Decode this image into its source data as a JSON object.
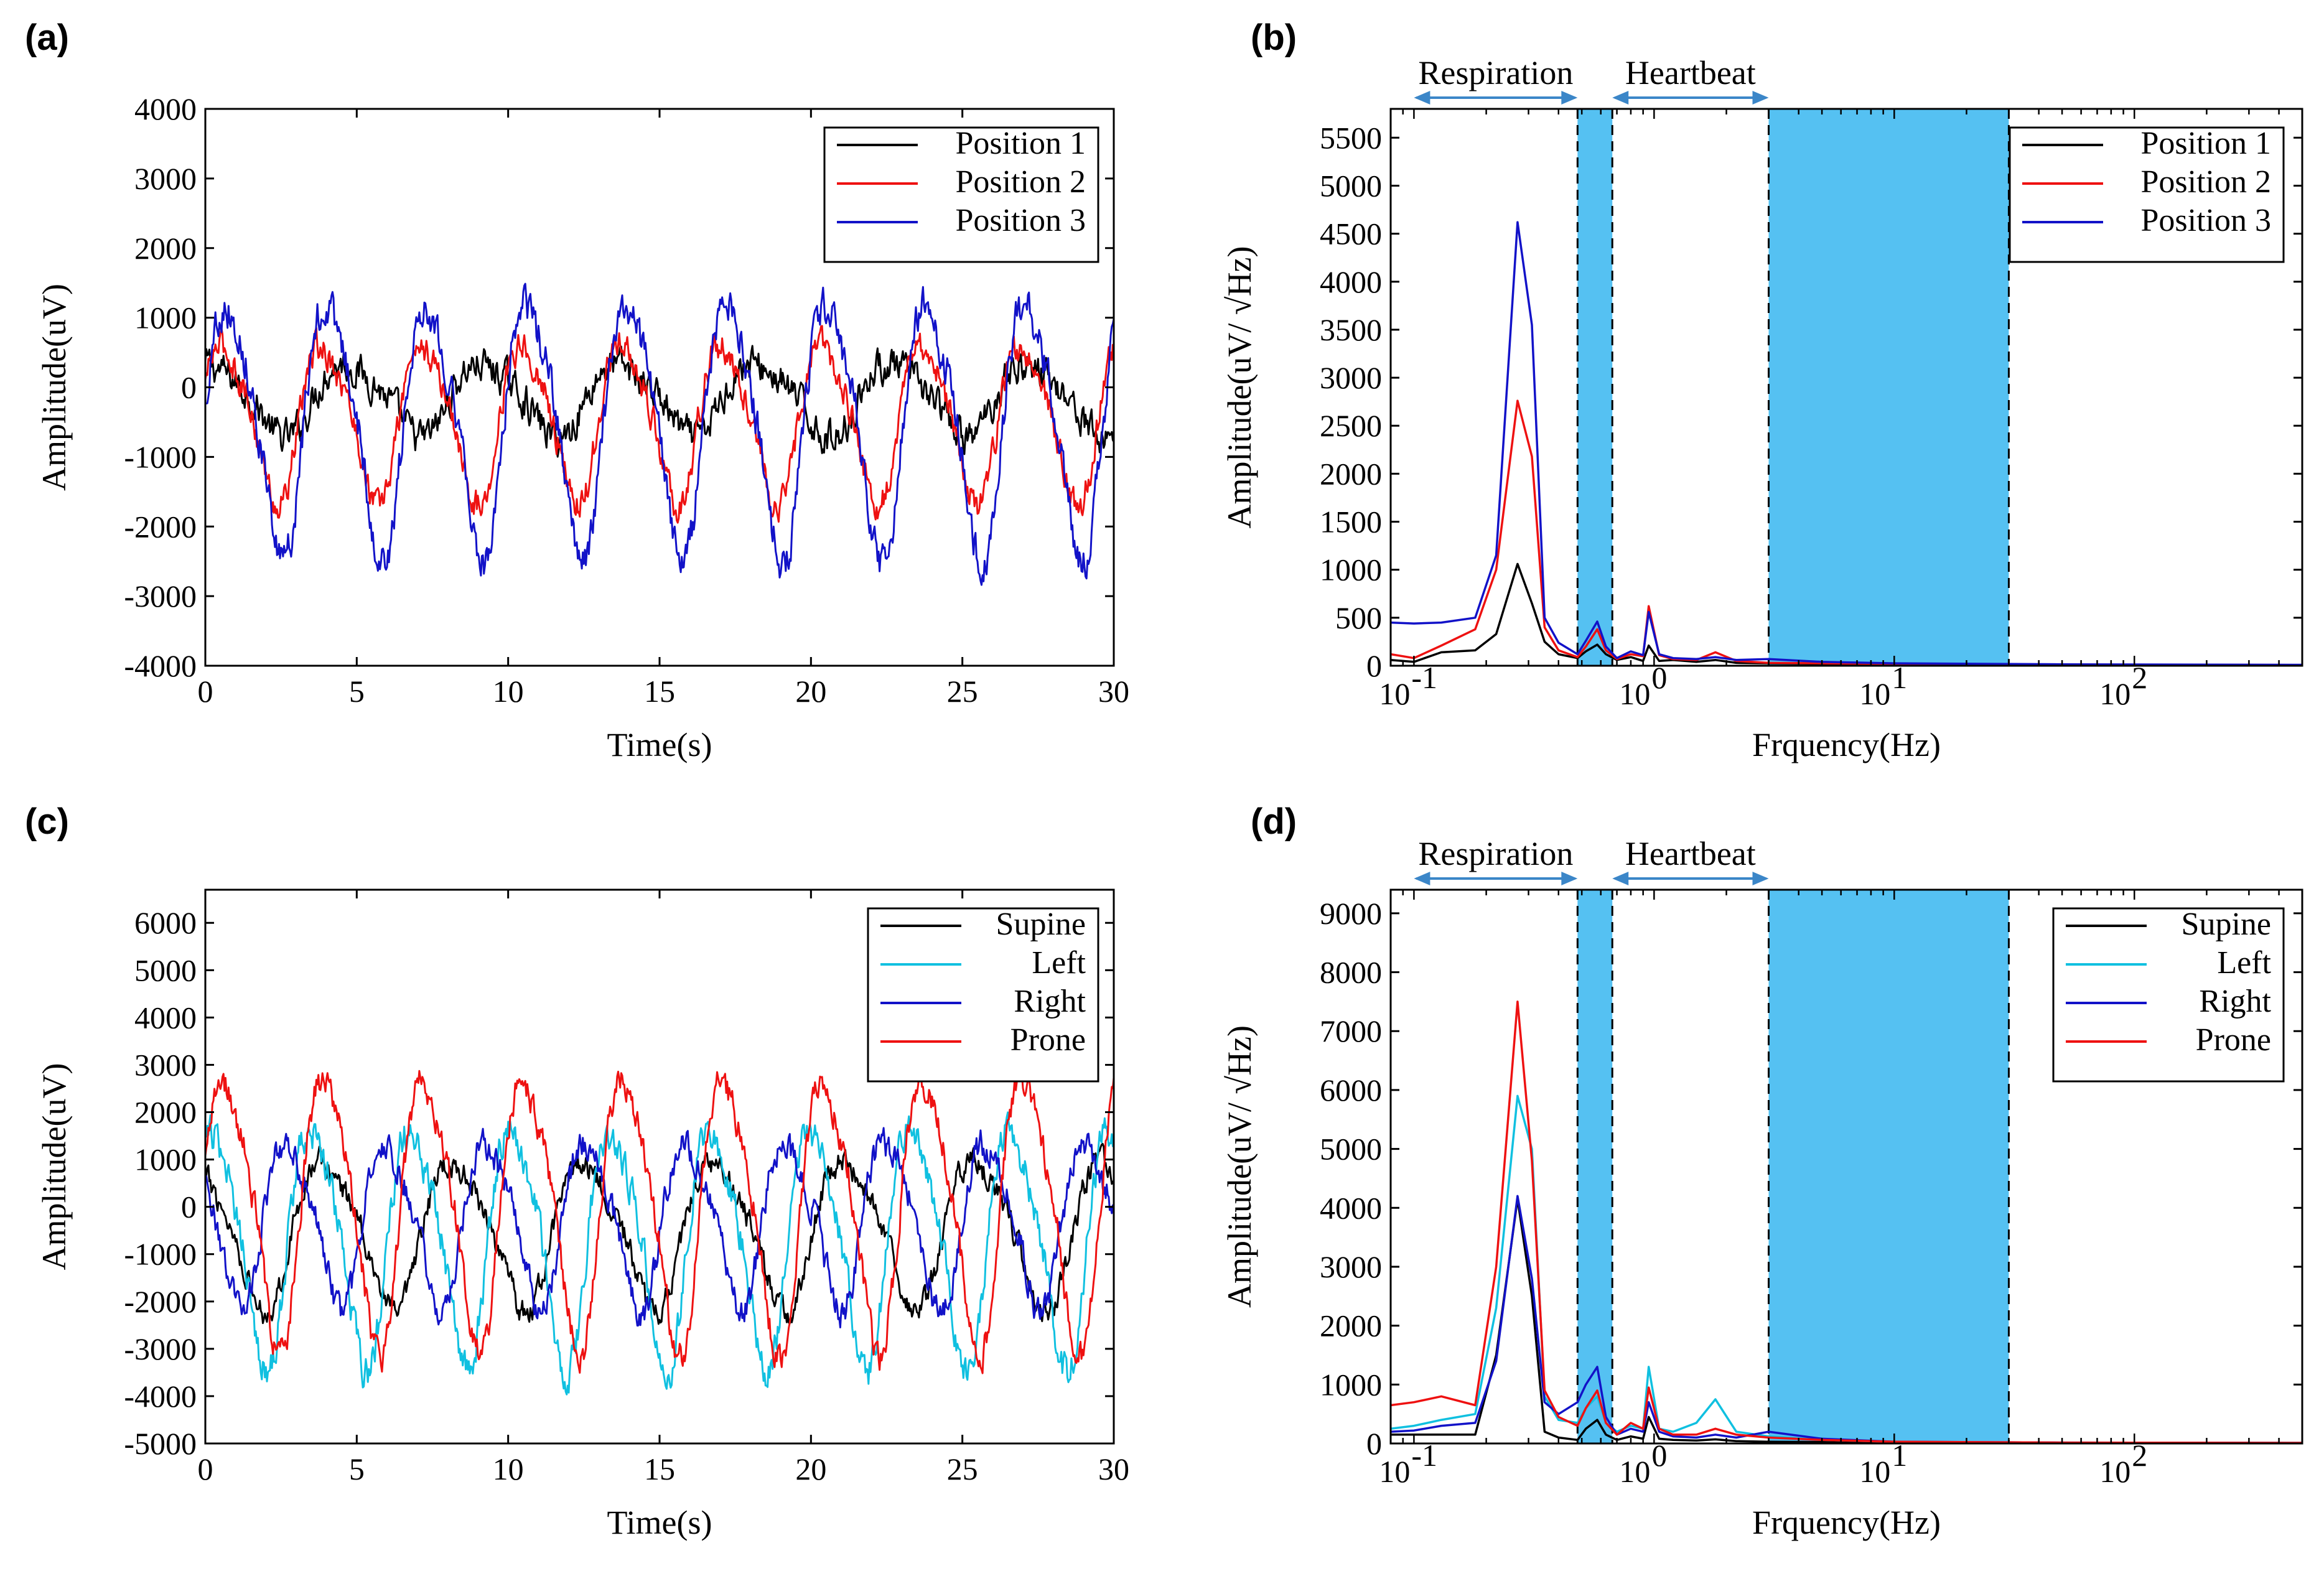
{
  "colors": {
    "black": "#000000",
    "red": "#ee1111",
    "blue": "#1212c8",
    "cyan": "#10c0e0",
    "band_fill": "#55c1f2",
    "arrow": "#3b86c8"
  },
  "chart_data": [
    {
      "panel": "(a)",
      "type": "line",
      "xlabel": "Time(s)",
      "ylabel": "Amplitude(uV)",
      "xlim": [
        0,
        30
      ],
      "ylim": [
        -4000,
        4000
      ],
      "xticks": [
        0,
        5,
        10,
        15,
        20,
        25,
        30
      ],
      "yticks": [
        -4000,
        -3000,
        -2000,
        -1000,
        0,
        1000,
        2000,
        3000,
        4000
      ],
      "legend_position": "top-right",
      "series": [
        {
          "name": "Position 1",
          "color": "#000000",
          "amplitude": 600,
          "period": 4.5,
          "phase": 1.2,
          "offset": -150,
          "noise": 200
        },
        {
          "name": "Position 2",
          "color": "#ee1111",
          "amplitude": 1300,
          "period": 3.3,
          "phase": 0.3,
          "offset": -450,
          "noise": 180
        },
        {
          "name": "Position 3",
          "color": "#1212c8",
          "amplitude": 2100,
          "period": 3.3,
          "phase": 0.0,
          "offset": -500,
          "noise": 220
        }
      ]
    },
    {
      "panel": "(b)",
      "type": "line",
      "xscale": "log",
      "xlabel": "Frquency(Hz)",
      "ylabel": "Amplitude(uV/ √Hz)",
      "xlim": [
        0.08,
        500
      ],
      "ylim": [
        0,
        5800
      ],
      "xticks": [
        0.1,
        1,
        10,
        100
      ],
      "xtick_labels": [
        {
          "base": "10",
          "exp": "-1"
        },
        {
          "base": "10",
          "exp": "0"
        },
        {
          "base": "10",
          "exp": "1"
        },
        {
          "base": "10",
          "exp": "2"
        }
      ],
      "yticks": [
        0,
        500,
        1000,
        1500,
        2000,
        2500,
        3000,
        3500,
        4000,
        4500,
        5000,
        5500
      ],
      "legend_position": "top-right",
      "shaded_bands_hz": [
        [
          0.48,
          0.67
        ],
        [
          3.0,
          30
        ]
      ],
      "annotations": [
        {
          "text": "Respiration",
          "from_hz": 0.1,
          "to_hz": 0.48
        },
        {
          "text": "Heartbeat",
          "from_hz": 0.67,
          "to_hz": 3.0
        }
      ],
      "series": [
        {
          "name": "Position 1",
          "color": "#000000",
          "x": [
            0.08,
            0.1,
            0.13,
            0.18,
            0.22,
            0.27,
            0.31,
            0.35,
            0.4,
            0.48,
            0.52,
            0.58,
            0.63,
            0.7,
            0.8,
            0.9,
            0.95,
            1.05,
            1.2,
            1.5,
            1.8,
            2.2,
            3,
            5,
            10,
            50,
            500
          ],
          "y": [
            60,
            40,
            140,
            160,
            330,
            1060,
            650,
            250,
            120,
            80,
            150,
            220,
            120,
            60,
            90,
            50,
            210,
            50,
            60,
            40,
            60,
            30,
            25,
            20,
            15,
            10,
            8
          ]
        },
        {
          "name": "Position 2",
          "color": "#ee1111",
          "x": [
            0.08,
            0.1,
            0.13,
            0.18,
            0.22,
            0.27,
            0.31,
            0.35,
            0.4,
            0.48,
            0.52,
            0.58,
            0.63,
            0.7,
            0.8,
            0.9,
            0.95,
            1.05,
            1.2,
            1.5,
            1.8,
            2.2,
            3,
            5,
            10,
            50,
            500
          ],
          "y": [
            120,
            80,
            210,
            380,
            1000,
            2760,
            2180,
            400,
            160,
            90,
            200,
            380,
            160,
            70,
            120,
            100,
            620,
            110,
            70,
            60,
            140,
            50,
            30,
            25,
            20,
            12,
            8
          ]
        },
        {
          "name": "Position 3",
          "color": "#1212c8",
          "x": [
            0.08,
            0.1,
            0.13,
            0.18,
            0.22,
            0.27,
            0.31,
            0.35,
            0.4,
            0.48,
            0.52,
            0.58,
            0.63,
            0.7,
            0.8,
            0.9,
            0.95,
            1.05,
            1.2,
            1.5,
            1.8,
            2.2,
            3,
            5,
            10,
            50,
            500
          ],
          "y": [
            450,
            440,
            450,
            500,
            1150,
            4620,
            3550,
            500,
            240,
            120,
            260,
            460,
            200,
            80,
            150,
            110,
            560,
            120,
            80,
            70,
            90,
            60,
            70,
            40,
            25,
            15,
            10
          ]
        }
      ]
    },
    {
      "panel": "(c)",
      "type": "line",
      "xlabel": "Time(s)",
      "ylabel": "Amplitude(uV)",
      "xlim": [
        0,
        30
      ],
      "ylim": [
        -5000,
        6700
      ],
      "xticks": [
        0,
        5,
        10,
        15,
        20,
        25,
        30
      ],
      "yticks": [
        -5000,
        -4000,
        -3000,
        -2000,
        -1000,
        0,
        1000,
        2000,
        3000,
        4000,
        5000,
        6000
      ],
      "legend_position": "top-right",
      "series": [
        {
          "name": "Supine",
          "color": "#000000",
          "amplitude": 1800,
          "period": 4.3,
          "phase": 2.0,
          "offset": -500,
          "noise": 220
        },
        {
          "name": "Left",
          "color": "#10c0e0",
          "amplitude": 2900,
          "period": 3.3,
          "phase": 1.0,
          "offset": -700,
          "noise": 300
        },
        {
          "name": "Right",
          "color": "#1212c8",
          "amplitude": 2000,
          "period": 3.3,
          "phase": 2.6,
          "offset": -300,
          "noise": 260
        },
        {
          "name": "Prone",
          "color": "#ee1111",
          "amplitude": 3300,
          "period": 3.3,
          "phase": 0.2,
          "offset": 0,
          "noise": 260
        }
      ]
    },
    {
      "panel": "(d)",
      "type": "line",
      "xscale": "log",
      "xlabel": "Frquency(Hz)",
      "ylabel": "Amplitude(uV/ √Hz)",
      "xlim": [
        0.08,
        500
      ],
      "ylim": [
        0,
        9400
      ],
      "xticks": [
        0.1,
        1,
        10,
        100
      ],
      "xtick_labels": [
        {
          "base": "10",
          "exp": "-1"
        },
        {
          "base": "10",
          "exp": "0"
        },
        {
          "base": "10",
          "exp": "1"
        },
        {
          "base": "10",
          "exp": "2"
        }
      ],
      "yticks": [
        0,
        1000,
        2000,
        3000,
        4000,
        5000,
        6000,
        7000,
        8000,
        9000
      ],
      "legend_position": "top-right",
      "shaded_bands_hz": [
        [
          0.48,
          0.67
        ],
        [
          3.0,
          30
        ]
      ],
      "annotations": [
        {
          "text": "Respiration",
          "from_hz": 0.1,
          "to_hz": 0.48
        },
        {
          "text": "Heartbeat",
          "from_hz": 0.67,
          "to_hz": 3.0
        }
      ],
      "series": [
        {
          "name": "Supine",
          "color": "#000000",
          "x": [
            0.08,
            0.1,
            0.13,
            0.18,
            0.22,
            0.27,
            0.31,
            0.35,
            0.4,
            0.48,
            0.52,
            0.58,
            0.63,
            0.7,
            0.8,
            0.9,
            0.95,
            1.05,
            1.2,
            1.5,
            1.8,
            2.2,
            3,
            5,
            10,
            50,
            500
          ],
          "y": [
            150,
            150,
            150,
            150,
            1500,
            4150,
            2500,
            200,
            100,
            60,
            250,
            400,
            150,
            60,
            120,
            80,
            450,
            80,
            60,
            50,
            70,
            40,
            30,
            25,
            20,
            12,
            10
          ]
        },
        {
          "name": "Left",
          "color": "#10c0e0",
          "x": [
            0.08,
            0.1,
            0.13,
            0.18,
            0.22,
            0.27,
            0.31,
            0.35,
            0.4,
            0.48,
            0.52,
            0.58,
            0.63,
            0.7,
            0.8,
            0.9,
            0.95,
            1.05,
            1.2,
            1.5,
            1.8,
            2.2,
            3,
            5,
            10,
            50,
            500
          ],
          "y": [
            250,
            300,
            400,
            500,
            2300,
            5900,
            5000,
            800,
            400,
            350,
            600,
            800,
            350,
            200,
            300,
            250,
            1300,
            250,
            200,
            350,
            750,
            200,
            120,
            60,
            30,
            15,
            10
          ]
        },
        {
          "name": "Right",
          "color": "#1212c8",
          "x": [
            0.08,
            0.1,
            0.13,
            0.18,
            0.22,
            0.27,
            0.31,
            0.35,
            0.4,
            0.48,
            0.52,
            0.58,
            0.63,
            0.7,
            0.8,
            0.9,
            0.95,
            1.05,
            1.2,
            1.5,
            1.8,
            2.2,
            3,
            5,
            10,
            50,
            500
          ],
          "y": [
            200,
            220,
            300,
            350,
            1400,
            4200,
            2800,
            700,
            500,
            700,
            1000,
            1300,
            450,
            150,
            250,
            200,
            700,
            200,
            120,
            100,
            150,
            100,
            200,
            80,
            30,
            15,
            10
          ]
        },
        {
          "name": "Prone",
          "color": "#ee1111",
          "x": [
            0.08,
            0.1,
            0.13,
            0.18,
            0.22,
            0.27,
            0.31,
            0.35,
            0.4,
            0.48,
            0.52,
            0.58,
            0.63,
            0.7,
            0.8,
            0.9,
            0.95,
            1.05,
            1.2,
            1.5,
            1.8,
            2.2,
            3,
            5,
            10,
            50,
            500
          ],
          "y": [
            650,
            700,
            800,
            650,
            3000,
            7500,
            4800,
            900,
            450,
            300,
            600,
            900,
            350,
            150,
            350,
            250,
            950,
            250,
            150,
            150,
            250,
            150,
            100,
            60,
            30,
            15,
            10
          ]
        }
      ]
    }
  ]
}
